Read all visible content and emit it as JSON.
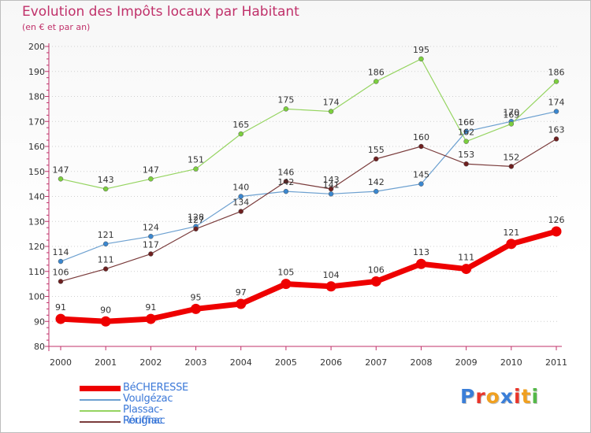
{
  "chart_data": {
    "type": "line",
    "title": "Evolution des Impôts locaux par Habitant",
    "subtitle": "(en € et par an)",
    "xlabel": "",
    "ylabel": "",
    "categories": [
      "2000",
      "2001",
      "2002",
      "2003",
      "2004",
      "2005",
      "2006",
      "2007",
      "2008",
      "2009",
      "2010",
      "2011"
    ],
    "ylim": [
      80,
      200
    ],
    "yticks": [
      "80",
      "90",
      "100",
      "110",
      "120",
      "130",
      "140",
      "150",
      "160",
      "170",
      "180",
      "190",
      "200"
    ],
    "grid": "horizontal dotted",
    "legend_position": "bottom-left",
    "series": [
      {
        "name": "Voulgézac",
        "color": "#6ca0d0",
        "marker_color": "#3b87cf",
        "values": [
          114,
          121,
          124,
          128,
          140,
          142,
          141,
          142,
          145,
          166,
          170,
          174
        ],
        "labels": [
          "114",
          "121",
          "124",
          "128",
          "140",
          "142",
          "141",
          "142",
          "145",
          "166",
          "170",
          "174"
        ]
      },
      {
        "name": "Plassac-Rouffiac",
        "color": "#95d460",
        "marker_color": "#7ccf3e",
        "values": [
          147,
          143,
          147,
          151,
          165,
          175,
          174,
          186,
          195,
          162,
          169,
          186
        ],
        "labels": [
          "147",
          "143",
          "147",
          "151",
          "165",
          "175",
          "174",
          "186",
          "195",
          "162",
          "169",
          "186"
        ]
      },
      {
        "name": "Pérignac",
        "color": "#7a3b3b",
        "marker_color": "#6e2020",
        "values": [
          106,
          111,
          117,
          127,
          134,
          146,
          143,
          155,
          160,
          153,
          152,
          163
        ],
        "labels": [
          "106",
          "111",
          "117",
          "127",
          "134",
          "146",
          "143",
          "155",
          "160",
          "153",
          "152",
          "163"
        ]
      },
      {
        "name": "BéCHERESSE",
        "color": "#ee0000",
        "marker_color": "#ee0000",
        "values": [
          91,
          90,
          91,
          95,
          97,
          105,
          104,
          106,
          113,
          111,
          121,
          126
        ],
        "labels": [
          "91",
          "90",
          "91",
          "95",
          "97",
          "105",
          "104",
          "106",
          "113",
          "111",
          "121",
          "126"
        ]
      }
    ],
    "legend_order": [
      "BéCHERESSE",
      "Voulgézac",
      "Plassac-Rouffiac",
      "Pérignac"
    ]
  },
  "legend": {
    "entries": [
      {
        "name": "BéCHERESSE",
        "color": "#ee0000",
        "thick": true
      },
      {
        "name": "Voulgézac",
        "color": "#6ca0d0",
        "thick": false
      },
      {
        "name": "Plassac-Rouffiac",
        "color": "#95d460",
        "thick": false
      },
      {
        "name": "Pérignac",
        "color": "#7a3b3b",
        "thick": false
      }
    ]
  },
  "logo": {
    "text": "Proxiti",
    "letter_colors": [
      "#3a7ed8",
      "#e9352a",
      "#f0a020",
      "#3a7ed8",
      "#e9352a",
      "#f0a020",
      "#54b848"
    ]
  }
}
